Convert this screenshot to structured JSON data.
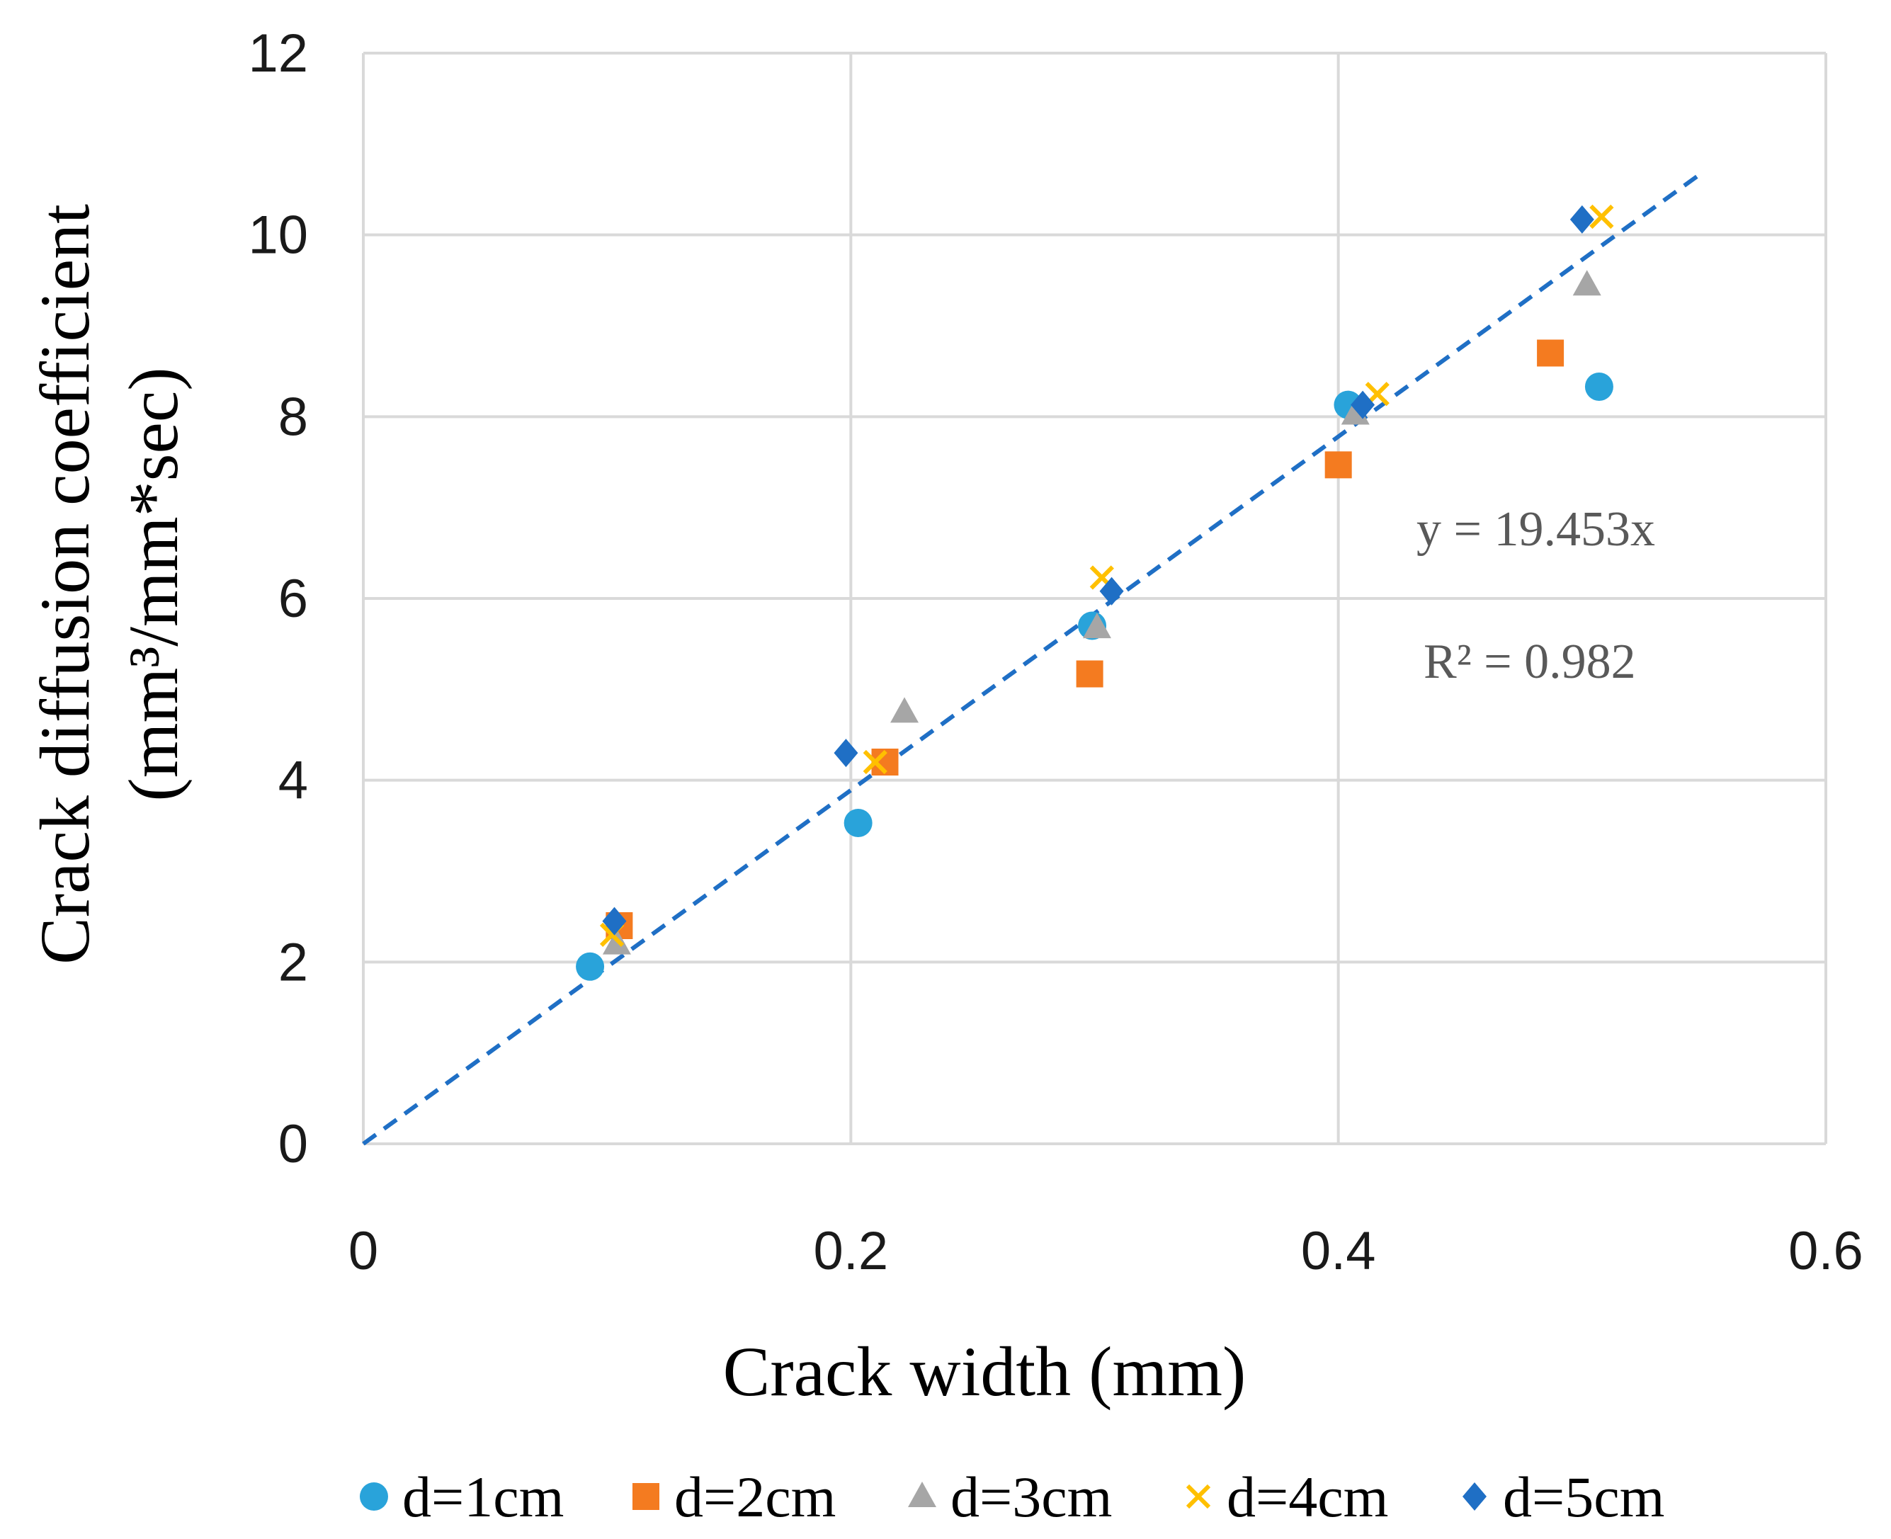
{
  "chart_data": {
    "type": "scatter",
    "title": "",
    "xlabel": "Crack width (mm)",
    "ylabel": "Crack diffusion coefficient",
    "ylabel_unit": "(mm³/mm*sec)",
    "xlim": [
      0,
      0.6
    ],
    "ylim": [
      0,
      12
    ],
    "xticks": [
      0,
      0.2,
      0.4,
      0.6
    ],
    "xtick_labels": [
      "0",
      "0.2",
      "0.4",
      "0.6"
    ],
    "yticks": [
      0,
      2,
      4,
      6,
      8,
      10,
      12
    ],
    "ytick_labels": [
      "0",
      "2",
      "4",
      "6",
      "8",
      "10",
      "12"
    ],
    "grid": true,
    "legend_position": "bottom",
    "series": [
      {
        "name": "d=1cm",
        "marker": "circle",
        "color": "#29A3DA",
        "x": [
          0.093,
          0.203,
          0.299,
          0.404,
          0.507
        ],
        "y": [
          1.95,
          3.53,
          5.7,
          8.13,
          8.33
        ]
      },
      {
        "name": "d=2cm",
        "marker": "square",
        "color": "#F47B20",
        "x": [
          0.105,
          0.214,
          0.298,
          0.4,
          0.487
        ],
        "y": [
          2.4,
          4.2,
          5.17,
          7.47,
          8.7
        ]
      },
      {
        "name": "d=3cm",
        "marker": "triangle",
        "color": "#A6A6A6",
        "x": [
          0.104,
          0.222,
          0.301,
          0.407,
          0.502
        ],
        "y": [
          2.2,
          4.75,
          5.68,
          8.03,
          9.45
        ]
      },
      {
        "name": "d=4cm",
        "marker": "x",
        "color": "#FFC000",
        "x": [
          0.102,
          0.21,
          0.303,
          0.416,
          0.508
        ],
        "y": [
          2.3,
          4.2,
          6.23,
          8.25,
          10.2
        ]
      },
      {
        "name": "d=5cm",
        "marker": "diamond",
        "color": "#1F6FC5",
        "x": [
          0.103,
          0.198,
          0.307,
          0.41,
          0.5
        ],
        "y": [
          2.45,
          4.3,
          6.08,
          8.13,
          10.17
        ]
      }
    ],
    "trendline": {
      "type": "linear-through-origin",
      "slope": 19.453,
      "x_range": [
        0,
        0.55
      ],
      "color": "#1F6FC5",
      "style": "dashed"
    },
    "annotations": {
      "equation": "y = 19.453x",
      "r_squared": "R² = 0.982"
    }
  }
}
